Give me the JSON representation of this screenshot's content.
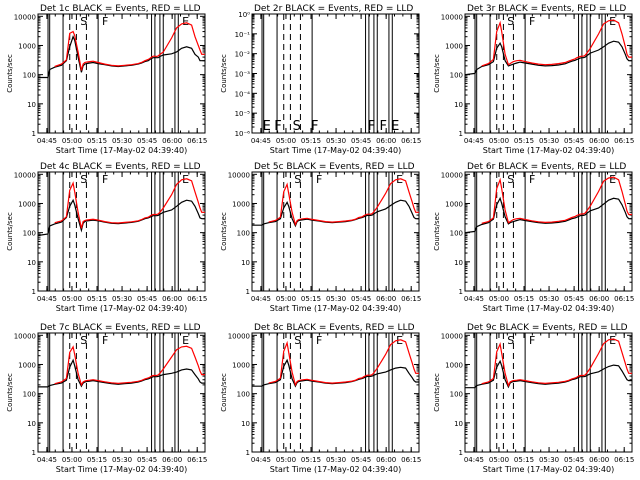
{
  "page": {
    "background": "#ffffff"
  },
  "colors": {
    "events": "#000000",
    "lld": "#ff0000",
    "frame": "#000000"
  },
  "shared": {
    "xlabel": "Start Time (17-May-02 04:39:40)",
    "ylabel": "Counts/sec",
    "xticks": [
      "04:45",
      "05:00",
      "05:15",
      "05:30",
      "05:45",
      "06:00",
      "06:15"
    ],
    "yticks_counts": [
      "1",
      "10",
      "100",
      "1000",
      "10000"
    ],
    "yticks_det2": [
      "10⁰",
      "10⁻¹",
      "10⁻²",
      "10⁻³",
      "10⁻⁴",
      "10⁻⁵",
      "10⁻⁶"
    ],
    "markers_det2": [
      {
        "text": "E",
        "x": "04:46"
      },
      {
        "text": "F",
        "x": "04:53"
      },
      {
        "text": "S",
        "x": "05:04"
      },
      {
        "text": "F",
        "x": "05:15"
      },
      {
        "text": "F",
        "x": "05:49"
      },
      {
        "text": "F",
        "x": "05:56"
      },
      {
        "text": "E",
        "x": "06:03"
      }
    ]
  },
  "panels": [
    {
      "title": "Det  1c  BLACK = Events, RED = LLD",
      "scale": "counts",
      "markers": [
        "S",
        "F",
        "E"
      ]
    },
    {
      "title": "Det  2r  BLACK = Events, RED = LLD",
      "scale": "det2"
    },
    {
      "title": "Det  3r  BLACK = Events, RED = LLD",
      "scale": "counts",
      "markers": [
        "S",
        "F",
        "E"
      ]
    },
    {
      "title": "Det  4c  BLACK = Events, RED = LLD",
      "scale": "counts",
      "markers": [
        "S",
        "F",
        "E"
      ]
    },
    {
      "title": "Det  5c  BLACK = Events, RED = LLD",
      "scale": "counts",
      "markers": [
        "S",
        "F",
        "E"
      ]
    },
    {
      "title": "Det  6r  BLACK = Events, RED = LLD",
      "scale": "counts",
      "markers": [
        "S",
        "F",
        "E"
      ]
    },
    {
      "title": "Det  7c  BLACK = Events, RED = LLD",
      "scale": "counts",
      "markers": [
        "S",
        "F",
        "E"
      ]
    },
    {
      "title": "Det  8c  BLACK = Events, RED = LLD",
      "scale": "counts",
      "markers": [
        "S",
        "F",
        "E"
      ]
    },
    {
      "title": "Det  9c  BLACK = Events, RED = LLD",
      "scale": "counts",
      "markers": [
        "S",
        "F",
        "E"
      ]
    }
  ],
  "chart_data": {
    "type": "line",
    "y_scale": "log",
    "xlim": [
      "04:39:40",
      "06:19:40"
    ],
    "ylim": [
      1,
      12000
    ],
    "ylim_det2": [
      1e-06,
      1
    ],
    "grid": false,
    "legend": "in title",
    "time_axis_minutes": [
      0,
      6,
      7,
      10,
      14,
      17,
      19,
      21,
      22,
      24,
      26,
      27,
      28,
      29,
      31,
      33,
      36,
      40,
      44,
      48,
      52,
      56,
      60,
      62,
      64,
      66,
      67,
      68,
      69,
      70,
      71,
      72,
      73,
      75,
      80,
      83,
      86,
      89,
      92,
      94,
      96,
      97,
      98,
      100
    ],
    "event_lines": [
      "04:45:40",
      "04:46:40",
      "04:54:40",
      "04:58:40",
      "05:02:40",
      "05:08:40",
      "05:15:40",
      "05:47:40",
      "05:49:40",
      "05:52:40",
      "05:54:40",
      "06:01:40",
      "06:03:40"
    ],
    "detectors": [
      {
        "detector": "1c",
        "series": [
          {
            "name": "Events",
            "values": [
              80,
              80,
              150,
              180,
              210,
              300,
              900,
              2000,
              1500,
              400,
              120,
              200,
              230,
              240,
              250,
              260,
              240,
              220,
              200,
              190,
              200,
              210,
              230,
              250,
              280,
              300,
              330,
              360,
              380,
              380,
              380,
              380,
              420,
              470,
              520,
              600,
              800,
              900,
              800,
              500,
              400,
              300,
              300,
              300
            ]
          },
          {
            "name": "LLD",
            "values": [
              null,
              null,
              null,
              190,
              230,
              320,
              2600,
              3000,
              2200,
              600,
              140,
              230,
              260,
              270,
              280,
              290,
              260,
              230,
              210,
              200,
              210,
              220,
              240,
              260,
              300,
              330,
              360,
              400,
              430,
              430,
              420,
              440,
              490,
              600,
              1800,
              4000,
              5500,
              6000,
              5000,
              2000,
              1000,
              700,
              500,
              500
            ]
          }
        ]
      },
      {
        "detector": "3r",
        "series": [
          {
            "name": "Events",
            "values": [
              100,
              110,
              150,
              190,
              220,
              280,
              800,
              1200,
              900,
              300,
              200,
              210,
              220,
              230,
              250,
              270,
              250,
              230,
              210,
              200,
              205,
              215,
              235,
              260,
              290,
              310,
              330,
              350,
              370,
              380,
              380,
              400,
              450,
              550,
              700,
              900,
              1200,
              1400,
              1300,
              900,
              500,
              350,
              300,
              300
            ]
          },
          {
            "name": "LLD",
            "values": [
              null,
              null,
              null,
              200,
              240,
              330,
              3000,
              6000,
              3000,
              500,
              220,
              240,
              260,
              280,
              300,
              310,
              280,
              250,
              230,
              220,
              225,
              240,
              260,
              290,
              320,
              350,
              380,
              400,
              420,
              430,
              430,
              460,
              550,
              800,
              2500,
              5500,
              7000,
              7500,
              6000,
              2500,
              900,
              500,
              400,
              400
            ]
          }
        ]
      },
      {
        "detector": "4c",
        "series": [
          {
            "name": "Events",
            "values": [
              80,
              90,
              170,
              200,
              230,
              330,
              800,
              1300,
              900,
              300,
              120,
              210,
              240,
              250,
              260,
              270,
              255,
              230,
              210,
              205,
              215,
              225,
              245,
              270,
              300,
              320,
              340,
              360,
              380,
              380,
              380,
              390,
              430,
              500,
              600,
              800,
              1100,
              1300,
              1200,
              800,
              450,
              320,
              300,
              300
            ]
          },
          {
            "name": "LLD",
            "values": [
              null,
              null,
              null,
              220,
              250,
              350,
              2800,
              5000,
              2500,
              500,
              140,
              240,
              260,
              270,
              280,
              290,
              270,
              240,
              220,
              215,
              225,
              235,
              255,
              280,
              320,
              340,
              370,
              400,
              420,
              420,
              420,
              440,
              500,
              700,
              2000,
              4500,
              6500,
              7000,
              6000,
              2500,
              1100,
              700,
              500,
              500
            ]
          }
        ]
      },
      {
        "detector": "5c",
        "series": [
          {
            "name": "Events",
            "values": [
              180,
              180,
              200,
              220,
              240,
              300,
              700,
              1100,
              800,
              300,
              170,
              240,
              260,
              270,
              280,
              290,
              270,
              250,
              230,
              220,
              230,
              240,
              260,
              280,
              310,
              330,
              350,
              370,
              390,
              390,
              390,
              400,
              440,
              520,
              650,
              850,
              1100,
              1300,
              1200,
              800,
              450,
              330,
              300,
              300
            ]
          },
          {
            "name": "LLD",
            "values": [
              null,
              null,
              null,
              230,
              260,
              340,
              2500,
              4500,
              2200,
              500,
              190,
              260,
              280,
              290,
              300,
              310,
              285,
              260,
              240,
              230,
              240,
              250,
              270,
              290,
              330,
              350,
              380,
              410,
              430,
              430,
              430,
              450,
              520,
              750,
              2200,
              4800,
              6500,
              7000,
              6000,
              2500,
              1100,
              700,
              500,
              500
            ]
          }
        ]
      },
      {
        "detector": "6r",
        "series": [
          {
            "name": "Events",
            "values": [
              100,
              110,
              160,
              190,
              220,
              290,
              900,
              1500,
              1000,
              350,
              200,
              220,
              230,
              240,
              260,
              280,
              260,
              240,
              220,
              210,
              215,
              225,
              245,
              270,
              300,
              320,
              340,
              360,
              380,
              390,
              390,
              410,
              460,
              560,
              700,
              950,
              1300,
              1500,
              1400,
              900,
              500,
              350,
              300,
              300
            ]
          },
          {
            "name": "LLD",
            "values": [
              null,
              null,
              null,
              210,
              240,
              320,
              3200,
              6500,
              3200,
              600,
              220,
              240,
              260,
              280,
              300,
              310,
              285,
              255,
              235,
              225,
              230,
              245,
              265,
              295,
              330,
              360,
              390,
              410,
              430,
              440,
              440,
              470,
              560,
              820,
              2600,
              5800,
              7500,
              8000,
              6500,
              2600,
              950,
              550,
              420,
              420
            ]
          }
        ]
      },
      {
        "detector": "7c",
        "series": [
          {
            "name": "Events",
            "values": [
              170,
              170,
              190,
              210,
              230,
              290,
              800,
              1400,
              900,
              300,
              180,
              230,
              250,
              260,
              270,
              280,
              260,
              240,
              220,
              210,
              220,
              230,
              250,
              270,
              300,
              320,
              340,
              360,
              380,
              380,
              380,
              390,
              410,
              450,
              500,
              550,
              650,
              700,
              650,
              450,
              320,
              250,
              230,
              230
            ]
          },
          {
            "name": "LLD",
            "values": [
              null,
              null,
              null,
              220,
              250,
              330,
              2600,
              4000,
              2200,
              500,
              200,
              250,
              270,
              280,
              290,
              300,
              280,
              255,
              235,
              225,
              235,
              245,
              265,
              285,
              320,
              345,
              370,
              400,
              420,
              420,
              420,
              440,
              500,
              700,
              1800,
              3200,
              4000,
              4200,
              3600,
              1800,
              900,
              600,
              450,
              450
            ]
          }
        ]
      },
      {
        "detector": "8c",
        "series": [
          {
            "name": "Events",
            "values": [
              180,
              180,
              200,
              220,
              240,
              300,
              850,
              1400,
              950,
              320,
              180,
              240,
              260,
              270,
              280,
              290,
              270,
              250,
              230,
              220,
              230,
              240,
              260,
              280,
              310,
              330,
              350,
              370,
              390,
              390,
              390,
              400,
              430,
              480,
              550,
              650,
              750,
              800,
              750,
              500,
              350,
              280,
              250,
              250
            ]
          },
          {
            "name": "LLD",
            "values": [
              null,
              null,
              null,
              230,
              260,
              340,
              2800,
              5500,
              2600,
              550,
              200,
              260,
              280,
              290,
              300,
              310,
              285,
              260,
              240,
              230,
              240,
              250,
              270,
              290,
              330,
              350,
              380,
              410,
              430,
              430,
              430,
              450,
              520,
              750,
              2200,
              4800,
              6500,
              7000,
              6000,
              2500,
              1100,
              700,
              500,
              500
            ]
          }
        ]
      },
      {
        "detector": "9c",
        "series": [
          {
            "name": "Events",
            "values": [
              160,
              160,
              190,
              210,
              230,
              290,
              800,
              1300,
              900,
              300,
              170,
              230,
              250,
              260,
              270,
              280,
              260,
              240,
              220,
              210,
              220,
              230,
              250,
              270,
              300,
              320,
              340,
              360,
              380,
              380,
              380,
              390,
              420,
              480,
              560,
              700,
              850,
              950,
              900,
              600,
              380,
              300,
              280,
              280
            ]
          },
          {
            "name": "LLD",
            "values": [
              null,
              null,
              null,
              220,
              250,
              330,
              2700,
              5000,
              2400,
              500,
              190,
              250,
              270,
              280,
              290,
              300,
              280,
              255,
              235,
              225,
              235,
              245,
              265,
              285,
              320,
              345,
              370,
              400,
              420,
              420,
              420,
              440,
              510,
              760,
              2400,
              5200,
              7000,
              7500,
              6300,
              2600,
              1100,
              700,
              500,
              500
            ]
          }
        ]
      }
    ]
  }
}
